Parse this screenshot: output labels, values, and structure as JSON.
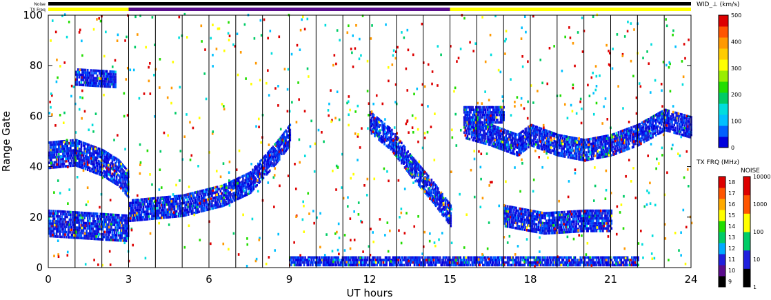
{
  "chart_data": {
    "type": "heatmap",
    "header_labels": {
      "noise": "Noise",
      "tx_freq": "TX Freq"
    },
    "top_bars": [
      {
        "name": "Noise",
        "segments": [
          {
            "start": 0,
            "end": 24,
            "color": "#000000"
          }
        ]
      },
      {
        "name": "TX Freq",
        "segments": [
          {
            "start": 0,
            "end": 3,
            "color": "#ffff00"
          },
          {
            "start": 3,
            "end": 15,
            "color": "#5a0d8c"
          },
          {
            "start": 15,
            "end": 24,
            "color": "#ffff00"
          }
        ]
      }
    ],
    "xlabel": "UT hours",
    "ylabel": "Range Gate",
    "xlim": [
      0,
      24
    ],
    "ylim": [
      0,
      100
    ],
    "x_ticks": [
      "0",
      "3",
      "6",
      "9",
      "12",
      "15",
      "18",
      "21",
      "24"
    ],
    "y_ticks": [
      "0",
      "20",
      "40",
      "60",
      "80",
      "100"
    ],
    "scan_lines_hours": [
      1,
      2,
      3,
      4,
      5,
      6,
      7,
      8,
      9,
      10,
      11,
      12,
      13,
      14,
      15,
      16,
      17,
      18,
      19,
      20,
      21,
      22,
      23
    ],
    "colorbars": [
      {
        "title": "WID_⊥ (km/s)",
        "min": 0,
        "max": 500,
        "tick_labels": [
          "0",
          "100",
          "200",
          "300",
          "400",
          "500"
        ],
        "colors": [
          "#0000dd",
          "#0060ff",
          "#00c0ff",
          "#00dddd",
          "#00cc66",
          "#22dd00",
          "#99ee00",
          "#ffff00",
          "#ffcc00",
          "#ff9900",
          "#ff5500",
          "#dd0000"
        ]
      },
      {
        "title": "TX FRQ (MHz)",
        "tick_labels": [
          "9",
          "10",
          "11",
          "12",
          "13",
          "14",
          "15",
          "16",
          "17",
          "18"
        ],
        "colors": [
          "#000000",
          "#5a0d8c",
          "#2020dd",
          "#00aaff",
          "#00cc66",
          "#22dd00",
          "#ffff00",
          "#ffaa00",
          "#ff5500",
          "#dd0000"
        ]
      },
      {
        "title": "NOISE",
        "tick_labels": [
          "1",
          "10",
          "100",
          "1000",
          "10000"
        ],
        "colors": [
          "#000000",
          "#2020dd",
          "#00cc66",
          "#ffff00",
          "#ff5500",
          "#dd0000"
        ]
      }
    ],
    "echo_bands": [
      {
        "points": [
          [
            0,
            44
          ],
          [
            1,
            45
          ],
          [
            2,
            41
          ],
          [
            2.6,
            37
          ],
          [
            3,
            32
          ]
        ],
        "halfwidth": 5
      },
      {
        "points": [
          [
            0,
            17
          ],
          [
            1.5,
            16
          ],
          [
            3,
            15
          ]
        ],
        "halfwidth": 5
      },
      {
        "points": [
          [
            3,
            22
          ],
          [
            5,
            24
          ],
          [
            6.5,
            28
          ],
          [
            7.5,
            33
          ],
          [
            8.5,
            45
          ],
          [
            9,
            52
          ]
        ],
        "halfwidth": 4
      },
      {
        "points": [
          [
            12,
            57
          ],
          [
            12.8,
            50
          ],
          [
            13.5,
            40
          ],
          [
            14.3,
            30
          ],
          [
            15,
            20
          ]
        ],
        "halfwidth": 4
      },
      {
        "points": [
          [
            15.5,
            55
          ],
          [
            16.5,
            52
          ],
          [
            17.5,
            48
          ],
          [
            18,
            52
          ],
          [
            19,
            48
          ],
          [
            20,
            46
          ],
          [
            21,
            48
          ],
          [
            22,
            52
          ],
          [
            23,
            58
          ],
          [
            24,
            55
          ]
        ],
        "halfwidth": 4
      },
      {
        "points": [
          [
            17,
            20
          ],
          [
            18.5,
            17
          ],
          [
            20,
            18
          ],
          [
            21,
            18
          ]
        ],
        "halfwidth": 4
      },
      {
        "points": [
          [
            9,
            2
          ],
          [
            12,
            2
          ],
          [
            15,
            2
          ],
          [
            18,
            2
          ],
          [
            22,
            2
          ]
        ],
        "halfwidth": 1.5
      },
      {
        "points": [
          [
            1,
            75
          ],
          [
            2.5,
            74
          ]
        ],
        "halfwidth": 3
      },
      {
        "points": [
          [
            15.5,
            60
          ],
          [
            17,
            60
          ]
        ],
        "halfwidth": 3
      }
    ]
  }
}
